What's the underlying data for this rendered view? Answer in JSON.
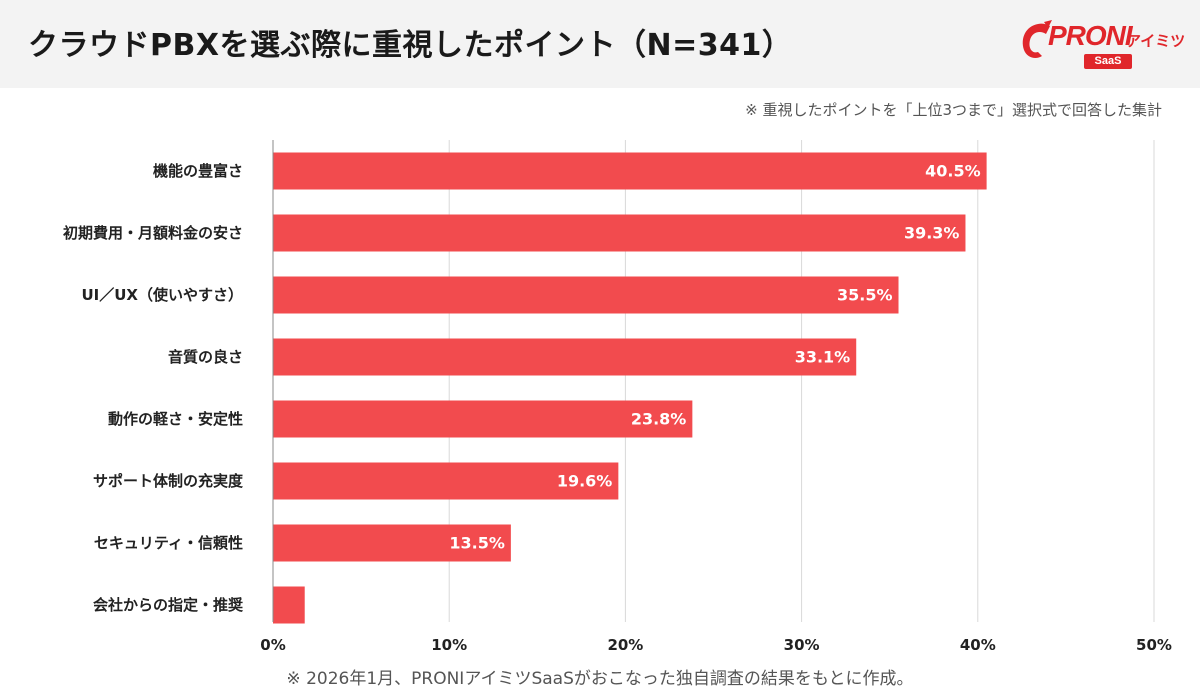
{
  "header": {
    "title": "クラウドPBXを選ぶ際に重視したポイント（N=341）"
  },
  "logo": {
    "main_text": "PRONI",
    "sub_text": "アイミツ",
    "badge_text": "SaaS"
  },
  "note": "※ 重視したポイントを「上位3つまで」選択式で回答した集計",
  "footnote": "※ 2026年1月、PRONIアイミツSaaSがおこなった独自調査の結果をもとに作成。",
  "colors": {
    "bar": "#f24b4e",
    "grid": "#d9d9d9",
    "brand": "#e0262b"
  },
  "chart_data": {
    "type": "bar",
    "orientation": "horizontal",
    "categories": [
      "機能の豊富さ",
      "初期費用・月額料金の安さ",
      "UI／UX（使いやすさ）",
      "音質の良さ",
      "動作の軽さ・安定性",
      "サポート体制の充実度",
      "セキュリティ・信頼性",
      "会社からの指定・推奨"
    ],
    "values": [
      40.5,
      39.3,
      35.5,
      33.1,
      23.8,
      19.6,
      13.5,
      1.8
    ],
    "value_labels": [
      "40.5%",
      "39.3%",
      "35.5%",
      "33.1%",
      "23.8%",
      "19.6%",
      "13.5%",
      ""
    ],
    "xlim": [
      0,
      50
    ],
    "xticks": [
      0,
      10,
      20,
      30,
      40,
      50
    ],
    "xtick_labels": [
      "0%",
      "10%",
      "20%",
      "30%",
      "40%",
      "50%"
    ],
    "grid": true,
    "legend": "none"
  }
}
